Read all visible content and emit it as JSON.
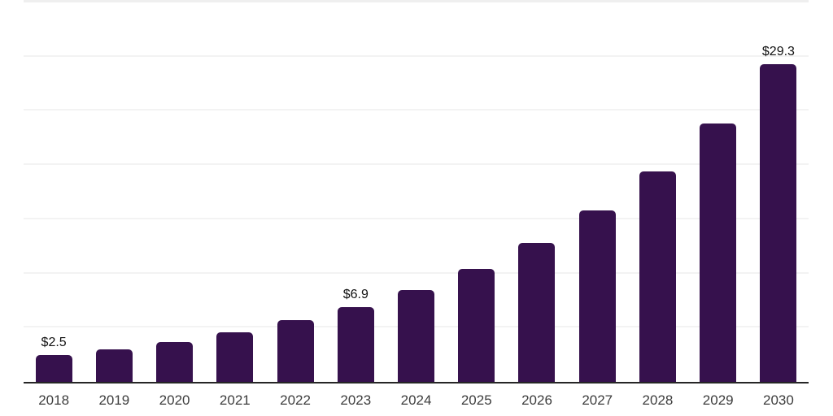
{
  "chart_data": {
    "type": "bar",
    "title": "",
    "xlabel": "",
    "ylabel": "",
    "categories": [
      "2018",
      "2019",
      "2020",
      "2021",
      "2022",
      "2023",
      "2024",
      "2025",
      "2026",
      "2027",
      "2028",
      "2029",
      "2030"
    ],
    "values": [
      2.5,
      3.0,
      3.7,
      4.6,
      5.7,
      6.9,
      8.5,
      10.4,
      12.8,
      15.8,
      19.4,
      23.8,
      29.3
    ],
    "data_labels": [
      "$2.5",
      null,
      null,
      null,
      null,
      "$6.9",
      null,
      null,
      null,
      null,
      null,
      null,
      "$29.3"
    ],
    "ylim": [
      0,
      35
    ],
    "grid_step": 5,
    "grid": true,
    "legend": false,
    "colors": {
      "bar": "#36114d",
      "gridline": "#f3f3f3",
      "gridline_top": "#efefef",
      "axis_line": "#262626",
      "value_label": "#111111",
      "tick_label": "#3d3d3d",
      "background": "#ffffff"
    }
  }
}
